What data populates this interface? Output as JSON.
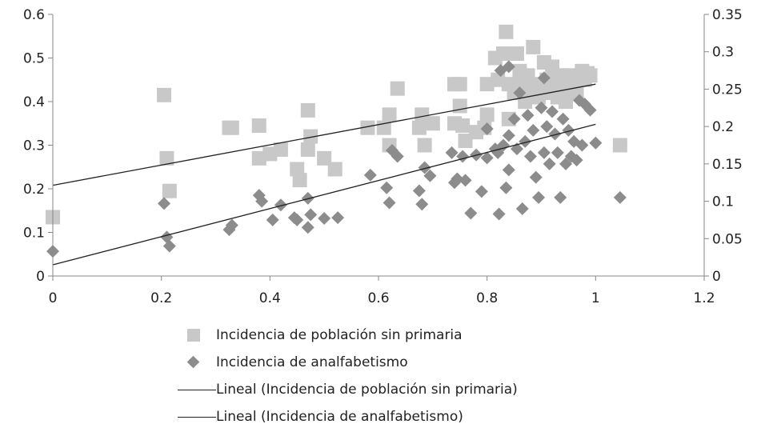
{
  "chart_data": {
    "type": "scatter",
    "x_range": [
      0,
      1.2
    ],
    "x_ticks": [
      0,
      0.2,
      0.4,
      0.6,
      0.8,
      1,
      1.2
    ],
    "y_left_range": [
      0,
      0.6
    ],
    "y_left_ticks": [
      0,
      0.1,
      0.2,
      0.3,
      0.4,
      0.5,
      0.6
    ],
    "y_right_range": [
      0,
      0.35
    ],
    "y_right_ticks": [
      0,
      0.05,
      0.1,
      0.15,
      0.2,
      0.25,
      0.3,
      0.35
    ],
    "grid": false,
    "legend_position": "bottom",
    "series": [
      {
        "name": "Incidencia de población sin primaria",
        "marker": "square",
        "axis": "left",
        "color": "#c8c8c8",
        "points": [
          [
            0,
            0.135
          ],
          [
            0.205,
            0.415
          ],
          [
            0.21,
            0.27
          ],
          [
            0.215,
            0.195
          ],
          [
            0.325,
            0.34
          ],
          [
            0.33,
            0.34
          ],
          [
            0.38,
            0.345
          ],
          [
            0.38,
            0.27
          ],
          [
            0.4,
            0.28
          ],
          [
            0.42,
            0.29
          ],
          [
            0.45,
            0.245
          ],
          [
            0.455,
            0.22
          ],
          [
            0.47,
            0.38
          ],
          [
            0.47,
            0.29
          ],
          [
            0.475,
            0.32
          ],
          [
            0.5,
            0.27
          ],
          [
            0.52,
            0.245
          ],
          [
            0.58,
            0.34
          ],
          [
            0.61,
            0.34
          ],
          [
            0.62,
            0.37
          ],
          [
            0.62,
            0.3
          ],
          [
            0.635,
            0.43
          ],
          [
            0.675,
            0.34
          ],
          [
            0.68,
            0.37
          ],
          [
            0.685,
            0.3
          ],
          [
            0.7,
            0.35
          ],
          [
            0.74,
            0.44
          ],
          [
            0.74,
            0.35
          ],
          [
            0.75,
            0.44
          ],
          [
            0.75,
            0.39
          ],
          [
            0.755,
            0.345
          ],
          [
            0.76,
            0.31
          ],
          [
            0.78,
            0.33
          ],
          [
            0.795,
            0.34
          ],
          [
            0.8,
            0.44
          ],
          [
            0.8,
            0.37
          ],
          [
            0.815,
            0.5
          ],
          [
            0.82,
            0.45
          ],
          [
            0.83,
            0.51
          ],
          [
            0.835,
            0.56
          ],
          [
            0.84,
            0.44
          ],
          [
            0.84,
            0.36
          ],
          [
            0.85,
            0.42
          ],
          [
            0.855,
            0.51
          ],
          [
            0.86,
            0.47
          ],
          [
            0.865,
            0.44
          ],
          [
            0.87,
            0.4
          ],
          [
            0.875,
            0.46
          ],
          [
            0.88,
            0.42
          ],
          [
            0.885,
            0.525
          ],
          [
            0.89,
            0.44
          ],
          [
            0.895,
            0.41
          ],
          [
            0.9,
            0.43
          ],
          [
            0.905,
            0.49
          ],
          [
            0.91,
            0.45
          ],
          [
            0.915,
            0.42
          ],
          [
            0.92,
            0.48
          ],
          [
            0.925,
            0.44
          ],
          [
            0.93,
            0.41
          ],
          [
            0.935,
            0.46
          ],
          [
            0.94,
            0.43
          ],
          [
            0.945,
            0.4
          ],
          [
            0.95,
            0.46
          ],
          [
            0.955,
            0.44
          ],
          [
            0.96,
            0.43
          ],
          [
            0.965,
            0.42
          ],
          [
            0.97,
            0.45
          ],
          [
            0.975,
            0.47
          ],
          [
            0.98,
            0.45
          ],
          [
            0.985,
            0.465
          ],
          [
            0.99,
            0.46
          ],
          [
            1.045,
            0.3
          ]
        ]
      },
      {
        "name": "Incidencia de analfabetismo",
        "marker": "diamond",
        "axis": "right",
        "color": "#8c8c8c",
        "points": [
          [
            0,
            0.033
          ],
          [
            0.205,
            0.097
          ],
          [
            0.21,
            0.052
          ],
          [
            0.215,
            0.04
          ],
          [
            0.325,
            0.062
          ],
          [
            0.33,
            0.068
          ],
          [
            0.38,
            0.108
          ],
          [
            0.385,
            0.1
          ],
          [
            0.405,
            0.075
          ],
          [
            0.42,
            0.095
          ],
          [
            0.445,
            0.078
          ],
          [
            0.45,
            0.075
          ],
          [
            0.47,
            0.104
          ],
          [
            0.47,
            0.065
          ],
          [
            0.475,
            0.082
          ],
          [
            0.5,
            0.077
          ],
          [
            0.525,
            0.078
          ],
          [
            0.585,
            0.135
          ],
          [
            0.615,
            0.118
          ],
          [
            0.62,
            0.098
          ],
          [
            0.625,
            0.168
          ],
          [
            0.635,
            0.16
          ],
          [
            0.675,
            0.114
          ],
          [
            0.68,
            0.096
          ],
          [
            0.685,
            0.145
          ],
          [
            0.695,
            0.134
          ],
          [
            0.735,
            0.165
          ],
          [
            0.74,
            0.125
          ],
          [
            0.745,
            0.13
          ],
          [
            0.755,
            0.16
          ],
          [
            0.76,
            0.128
          ],
          [
            0.77,
            0.084
          ],
          [
            0.78,
            0.162
          ],
          [
            0.79,
            0.113
          ],
          [
            0.8,
            0.197
          ],
          [
            0.8,
            0.158
          ],
          [
            0.815,
            0.17
          ],
          [
            0.82,
            0.165
          ],
          [
            0.822,
            0.083
          ],
          [
            0.83,
            0.175
          ],
          [
            0.835,
            0.118
          ],
          [
            0.84,
            0.188
          ],
          [
            0.84,
            0.142
          ],
          [
            0.85,
            0.21
          ],
          [
            0.855,
            0.17
          ],
          [
            0.86,
            0.245
          ],
          [
            0.865,
            0.09
          ],
          [
            0.87,
            0.18
          ],
          [
            0.875,
            0.215
          ],
          [
            0.88,
            0.16
          ],
          [
            0.885,
            0.195
          ],
          [
            0.89,
            0.132
          ],
          [
            0.895,
            0.105
          ],
          [
            0.9,
            0.225
          ],
          [
            0.905,
            0.165
          ],
          [
            0.91,
            0.2
          ],
          [
            0.915,
            0.15
          ],
          [
            0.92,
            0.22
          ],
          [
            0.925,
            0.19
          ],
          [
            0.93,
            0.165
          ],
          [
            0.935,
            0.105
          ],
          [
            0.94,
            0.21
          ],
          [
            0.945,
            0.15
          ],
          [
            0.95,
            0.195
          ],
          [
            0.955,
            0.16
          ],
          [
            0.96,
            0.18
          ],
          [
            0.965,
            0.155
          ],
          [
            0.97,
            0.235
          ],
          [
            0.975,
            0.175
          ],
          [
            0.98,
            0.23
          ],
          [
            0.99,
            0.222
          ],
          [
            1.0,
            0.178
          ],
          [
            1.045,
            0.105
          ],
          [
            0.84,
            0.28
          ],
          [
            0.825,
            0.275
          ],
          [
            0.905,
            0.265
          ]
        ]
      }
    ],
    "trendlines": [
      {
        "name": "Lineal (Incidencia de población sin primaria)",
        "axis": "left",
        "x": [
          0,
          1.0
        ],
        "y": [
          0.208,
          0.44
        ],
        "color": "#222222"
      },
      {
        "name": "Lineal (Incidencia de analfabetismo)",
        "axis": "right",
        "x": [
          0,
          1.0
        ],
        "y": [
          0.015,
          0.203
        ],
        "color": "#222222"
      }
    ]
  }
}
